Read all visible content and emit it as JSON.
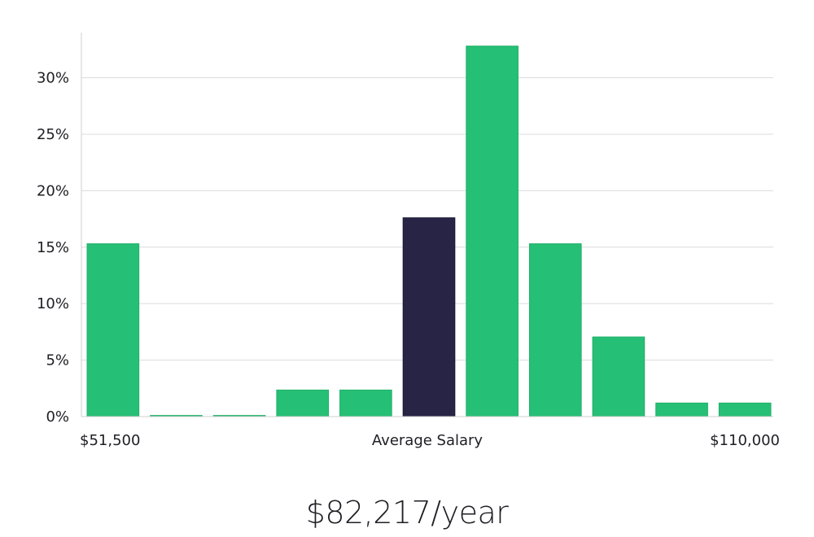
{
  "chart_data": {
    "type": "bar",
    "title": "",
    "xlabel": "Average Salary",
    "ylabel": "",
    "x_min_label": "$51,500",
    "x_max_label": "$110,000",
    "ylim": [
      0,
      34
    ],
    "yticks": [
      0,
      5,
      10,
      15,
      20,
      25,
      30
    ],
    "ytick_format": "{v}%",
    "grid": true,
    "values": [
      15.3,
      0.1,
      0.1,
      2.35,
      2.35,
      17.6,
      32.8,
      15.3,
      7.05,
      1.2,
      1.2
    ],
    "highlight_index": 5,
    "colors": {
      "bar": "#26bf76",
      "highlight": "#282445",
      "grid": "#dcdcdc",
      "axis": "#cfcfcf",
      "text": "#1e1e24"
    }
  },
  "summary": {
    "salary_text": "$82,217/year"
  }
}
